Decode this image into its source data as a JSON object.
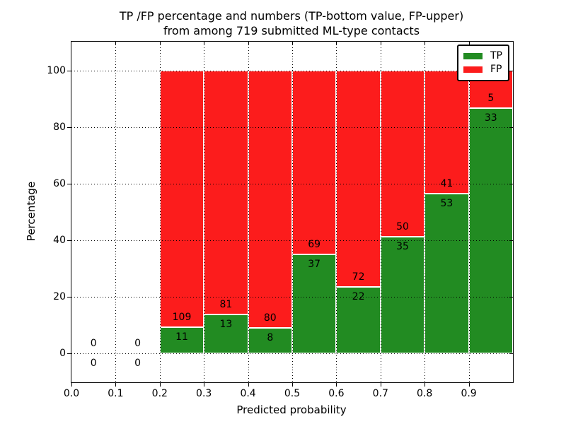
{
  "title": {
    "line1": "TP /FP percentage and numbers (TP-bottom value, FP-upper)",
    "line2": "from among 719 submitted ML-type contacts"
  },
  "chart_data": {
    "type": "bar",
    "stacked": true,
    "normalized": "each bin scaled to 100%",
    "title": "TP /FP percentage and numbers (TP-bottom value, FP-upper) from among 719 submitted ML-type contacts",
    "xlabel": "Predicted probability",
    "ylabel": "Percentage",
    "xlim": [
      0.0,
      1.0
    ],
    "ylim": [
      -10.25,
      110.25
    ],
    "x_tick_values": [
      0.0,
      0.1,
      0.2,
      0.3,
      0.4,
      0.5,
      0.6,
      0.7,
      0.8,
      0.9
    ],
    "x_tick_labels": [
      "0.0",
      "0.1",
      "0.2",
      "0.3",
      "0.4",
      "0.5",
      "0.6",
      "0.7",
      "0.8",
      "0.9"
    ],
    "y_tick_values": [
      0,
      20,
      40,
      60,
      80,
      100
    ],
    "y_tick_labels": [
      "0",
      "20",
      "40",
      "60",
      "80",
      "100"
    ],
    "grid": {
      "visible": true,
      "style": "dotted",
      "color": "#000000",
      "above_bars": true
    },
    "total_contacts": 719,
    "bin_width": 0.1,
    "bins": [
      {
        "x_start": 0.0,
        "tp_count": 0,
        "fp_count": 0,
        "tp_percent": 0.0,
        "fp_percent": 0.0
      },
      {
        "x_start": 0.1,
        "tp_count": 0,
        "fp_count": 0,
        "tp_percent": 0.0,
        "fp_percent": 0.0
      },
      {
        "x_start": 0.2,
        "tp_count": 11,
        "fp_count": 109,
        "tp_percent": 9.17,
        "fp_percent": 90.83
      },
      {
        "x_start": 0.3,
        "tp_count": 13,
        "fp_count": 81,
        "tp_percent": 13.83,
        "fp_percent": 86.17
      },
      {
        "x_start": 0.4,
        "tp_count": 8,
        "fp_count": 80,
        "tp_percent": 9.09,
        "fp_percent": 90.91
      },
      {
        "x_start": 0.5,
        "tp_count": 37,
        "fp_count": 69,
        "tp_percent": 34.91,
        "fp_percent": 65.09
      },
      {
        "x_start": 0.6,
        "tp_count": 22,
        "fp_count": 72,
        "tp_percent": 23.4,
        "fp_percent": 76.6
      },
      {
        "x_start": 0.7,
        "tp_count": 35,
        "fp_count": 50,
        "tp_percent": 41.18,
        "fp_percent": 58.82
      },
      {
        "x_start": 0.8,
        "tp_count": 53,
        "fp_count": 41,
        "tp_percent": 56.38,
        "fp_percent": 43.62
      },
      {
        "x_start": 0.9,
        "tp_count": 33,
        "fp_count": 5,
        "tp_percent": 86.84,
        "fp_percent": 13.16
      }
    ],
    "legend": {
      "position": "upper-right",
      "entries": [
        {
          "label": "TP",
          "color": "#228b22"
        },
        {
          "label": "FP",
          "color": "#fc1c1c"
        }
      ]
    }
  },
  "colors": {
    "tp": "#228b22",
    "fp": "#fc1c1c",
    "axis": "#000000",
    "text": "#000000",
    "background": "#ffffff",
    "bar_edge": "#ffffff"
  }
}
